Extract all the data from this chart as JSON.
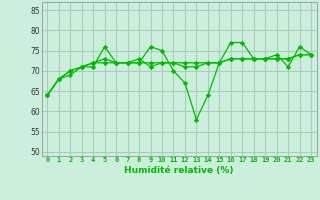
{
  "title": "",
  "xlabel": "Humidité relative (%)",
  "ylabel": "",
  "bg_color": "#cceedd",
  "grid_color": "#aaccbb",
  "line_color": "#00bb00",
  "xlim": [
    -0.5,
    23.5
  ],
  "ylim": [
    49,
    87
  ],
  "yticks": [
    50,
    55,
    60,
    65,
    70,
    75,
    80,
    85
  ],
  "xticks": [
    0,
    1,
    2,
    3,
    4,
    5,
    6,
    7,
    8,
    9,
    10,
    11,
    12,
    13,
    14,
    15,
    16,
    17,
    18,
    19,
    20,
    21,
    22,
    23
  ],
  "series": [
    [
      64,
      68,
      70,
      71,
      71,
      76,
      72,
      72,
      72,
      76,
      75,
      70,
      67,
      58,
      64,
      72,
      77,
      77,
      73,
      73,
      74,
      71,
      76,
      74
    ],
    [
      64,
      68,
      69,
      71,
      72,
      72,
      72,
      72,
      73,
      71,
      72,
      72,
      71,
      71,
      72,
      72,
      73,
      73,
      73,
      73,
      73,
      73,
      74,
      74
    ],
    [
      64,
      68,
      70,
      71,
      72,
      73,
      72,
      72,
      72,
      72,
      72,
      72,
      72,
      72,
      72,
      72,
      73,
      73,
      73,
      73,
      73,
      73,
      74,
      74
    ]
  ]
}
